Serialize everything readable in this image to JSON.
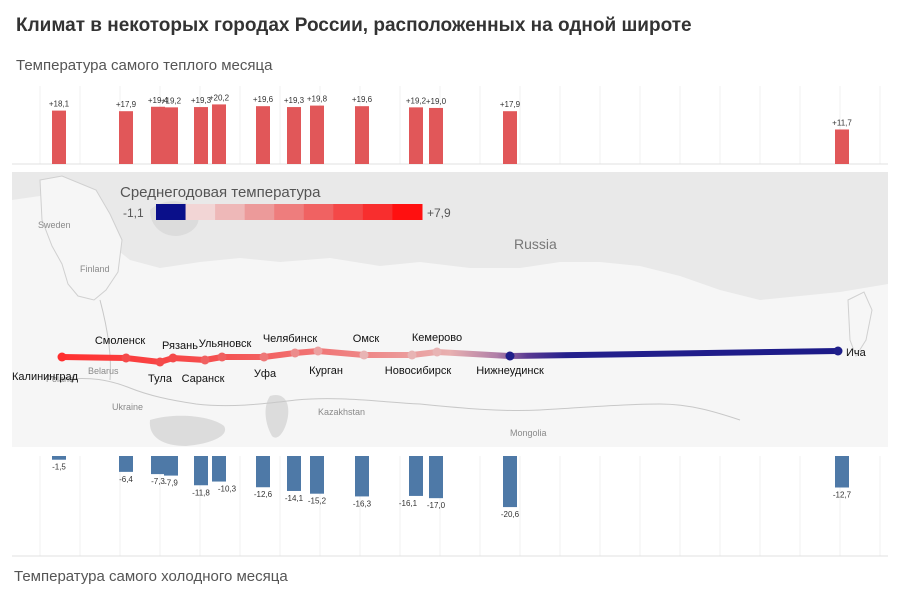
{
  "title": "Климат в некоторых городах России, расположенных на одной широте",
  "top_subtitle": "Температура самого теплого месяца",
  "bottom_subtitle": "Температура самого холодного месяца",
  "colors": {
    "warm_bar": "#e15759",
    "cold_bar": "#4e79a7",
    "map_bg": "#e9e9e9",
    "land": "#f6f6f6",
    "water": "#dcdcdc",
    "route_warm": "#ff3333",
    "route_cold": "#1f1f8a"
  },
  "legend": {
    "title": "Среднегодовая температура",
    "min_label": "-1,1",
    "max_label": "+7,9",
    "swatches": [
      "#0a0f8a",
      "#f2d5d5",
      "#eeb8b8",
      "#ec9a9a",
      "#ee7d7d",
      "#f06262",
      "#f44848",
      "#f82e2e",
      "#ff1010"
    ]
  },
  "map_labels": {
    "country": "Russia",
    "others": [
      {
        "text": "Sweden"
      },
      {
        "text": "Finland"
      },
      {
        "text": "Belarus"
      },
      {
        "text": "Poland"
      },
      {
        "text": "Ukraine"
      },
      {
        "text": "Kazakhstan"
      },
      {
        "text": "Mongolia"
      }
    ]
  },
  "chart_data": {
    "type": "bar",
    "series_names": [
      "Температура самого теплого месяца",
      "Температура самого холодного месяца"
    ],
    "cities": [
      {
        "name": "Калининград",
        "warm": 18.1,
        "warm_label": "+18,1",
        "cold": -1.5,
        "cold_label": "-1,5"
      },
      {
        "name": "Смоленск",
        "warm": 17.9,
        "warm_label": "+17,9",
        "cold": -6.4,
        "cold_label": "-6,4"
      },
      {
        "name": "Тула",
        "warm": 19.4,
        "warm_label": "+19,4",
        "cold": -7.3,
        "cold_label": "-7,3"
      },
      {
        "name": "Рязань",
        "warm": 19.2,
        "warm_label": "+19,2",
        "cold": -7.9,
        "cold_label": "-7,9"
      },
      {
        "name": "Саранск",
        "warm": 19.3,
        "warm_label": "+19,3",
        "cold": -11.8,
        "cold_label": "-11,8"
      },
      {
        "name": "Ульяновск",
        "warm": 20.2,
        "warm_label": "+20,2",
        "cold": -10.3,
        "cold_label": "-10,3"
      },
      {
        "name": "Уфа",
        "warm": 19.6,
        "warm_label": "+19,6",
        "cold": -12.6,
        "cold_label": "-12,6"
      },
      {
        "name": "Челябинск",
        "warm": 19.3,
        "warm_label": "+19,3",
        "cold": -14.1,
        "cold_label": "-14,1"
      },
      {
        "name": "Курган",
        "warm": 19.8,
        "warm_label": "+19,8",
        "cold": -15.2,
        "cold_label": "-15,2"
      },
      {
        "name": "Омск",
        "warm": 19.6,
        "warm_label": "+19,6",
        "cold": -16.3,
        "cold_label": "-16,3"
      },
      {
        "name": "Новосибирск",
        "warm": 19.2,
        "warm_label": "+19,2",
        "cold": -16.1,
        "cold_label": "-16,1"
      },
      {
        "name": "Кемерово",
        "warm": 19.0,
        "warm_label": "+19,0",
        "cold": -17.0,
        "cold_label": "-17,0"
      },
      {
        "name": "Нижнеудинск",
        "warm": 17.9,
        "warm_label": "+17,9",
        "cold": -20.6,
        "cold_label": "-20,6"
      },
      {
        "name": "Ича",
        "warm": 11.7,
        "warm_label": "+11,7",
        "cold": -12.7,
        "cold_label": "-12,7"
      }
    ],
    "warm_ylim": [
      0,
      22
    ],
    "cold_ylim": [
      -22,
      0
    ],
    "grid": true
  }
}
